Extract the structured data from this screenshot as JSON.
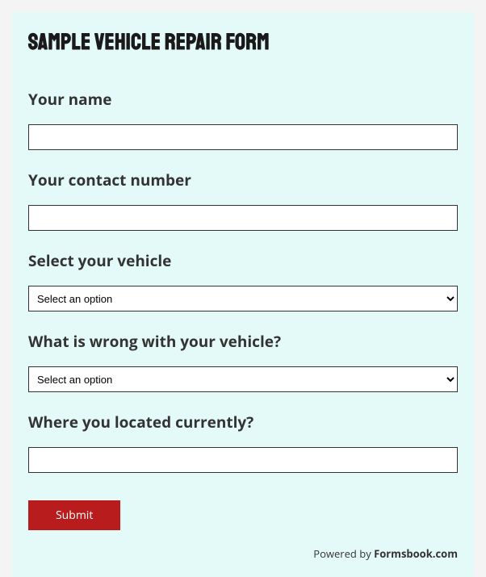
{
  "form": {
    "title": "Sample Vehicle Repair Form",
    "fields": {
      "name": {
        "label": "Your name",
        "value": ""
      },
      "contact": {
        "label": "Your contact number",
        "value": ""
      },
      "vehicle": {
        "label": "Select your vehicle",
        "placeholder": "Select an option",
        "value": ""
      },
      "problem": {
        "label": "What is wrong with your vehicle?",
        "placeholder": "Select an option",
        "value": ""
      },
      "location": {
        "label": "Where you located currently?",
        "value": ""
      }
    },
    "submit_label": "Submit"
  },
  "footer": {
    "powered_by_text": "Powered by ",
    "brand_name": "Formsbook.com"
  },
  "colors": {
    "page_bg": "#f4f4f4",
    "form_bg": "#e4faf8",
    "input_bg": "#ffffff",
    "input_border": "#333333",
    "text_primary": "#333333",
    "title_color": "#1a1a1a",
    "button_bg": "#b91c1c",
    "button_text": "#ffffff"
  }
}
